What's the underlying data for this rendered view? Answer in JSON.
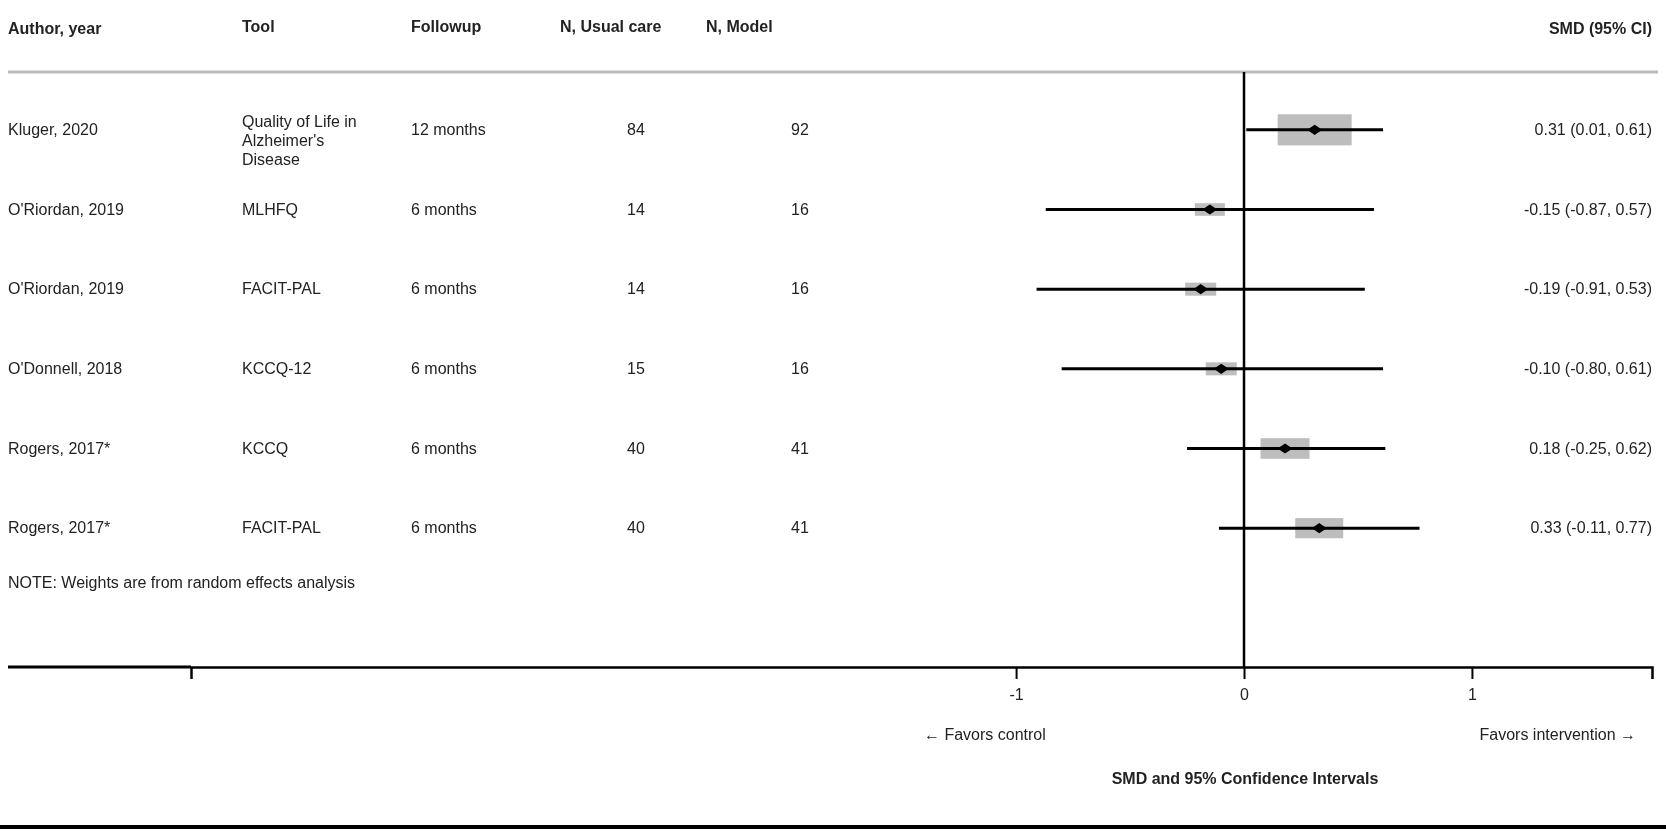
{
  "chart_data": {
    "type": "scatter",
    "ylabel": "Author, year",
    "xlabel": "SMD and 95% Confidence Intervals",
    "categories": [
      "Kluger, 2020",
      "O'Riordan, 2019",
      "O'Riordan, 2019",
      "O'Donnell, 2018",
      "Rogers, 2017*",
      "Rogers, 2017*"
    ],
    "series": [
      {
        "color": "#000000",
        "values": [
          0.31,
          -0.15,
          -0.19,
          -0.1,
          0.18,
          0.33
        ],
        "errors": [
          [
            0.01,
            0.61
          ],
          [
            -0.87,
            0.57
          ],
          [
            -0.91,
            0.53
          ],
          [
            -0.8,
            0.61
          ],
          [
            -0.25,
            0.62
          ],
          [
            -0.11,
            0.77
          ]
        ]
      }
    ],
    "marker": "diamond",
    "orientation": "horizontal",
    "xlim": [
      -4.62,
      1.79
    ],
    "xticks": [
      -1,
      0,
      1
    ],
    "ref_lines": [
      {
        "axis": "x",
        "value": 0
      }
    ],
    "annotations": [
      "Tool",
      "Followup",
      "N, Usual care",
      "N, Model",
      "SMD (95% CI)",
      "Quality of Life in Alzheimer's Disease",
      "12 months",
      "84",
      "92",
      "MLHFQ",
      "6 months",
      "14",
      "16",
      "FACIT-PAL",
      "6 months",
      "14",
      "16",
      "KCCQ-12",
      "6 months",
      "15",
      "16",
      "KCCQ",
      "6 months",
      "40",
      "41",
      "FACIT-PAL",
      "6 months",
      "40",
      "41",
      "NOTE: Weights are from random effects analysis",
      "← Favors  control",
      "Favors intervention →",
      "0.31 (0.01, 0.61)",
      "-0.15 (-0.87, 0.57)",
      "-0.19 (-0.91, 0.53)",
      "-0.10 (-0.80, 0.61)",
      "0.18 (-0.25, 0.62)",
      "0.33 (-0.11, 0.77)"
    ]
  }
}
